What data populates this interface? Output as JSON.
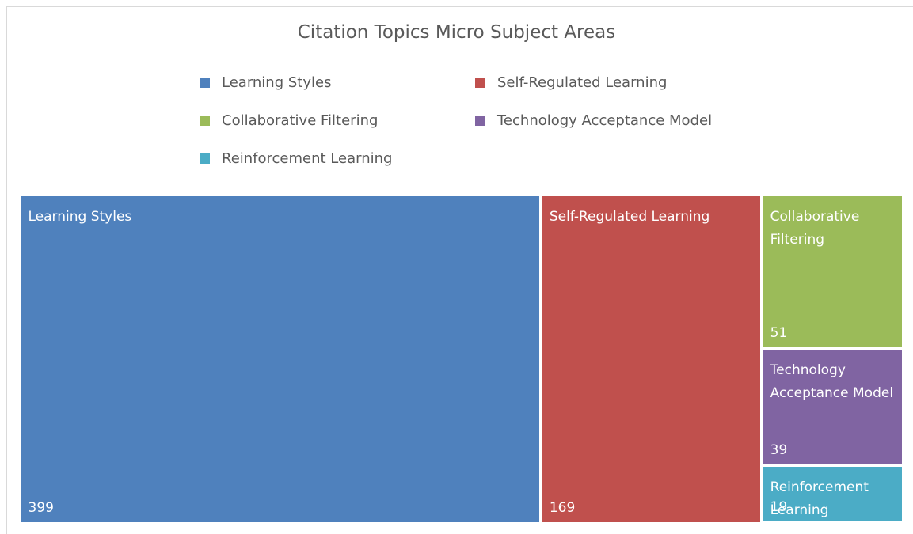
{
  "chart_data": {
    "type": "treemap",
    "title": "Citation Topics Micro Subject Areas",
    "categories": [
      "Learning Styles",
      "Self-Regulated Learning",
      "Collaborative Filtering",
      "Technology Acceptance Model",
      "Reinforcement Learning"
    ],
    "values": [
      399,
      169,
      51,
      39,
      19
    ],
    "colors": [
      "#4f81bd",
      "#c0504d",
      "#9bbb59",
      "#8064a2",
      "#4bacc6"
    ],
    "legend": "top"
  }
}
